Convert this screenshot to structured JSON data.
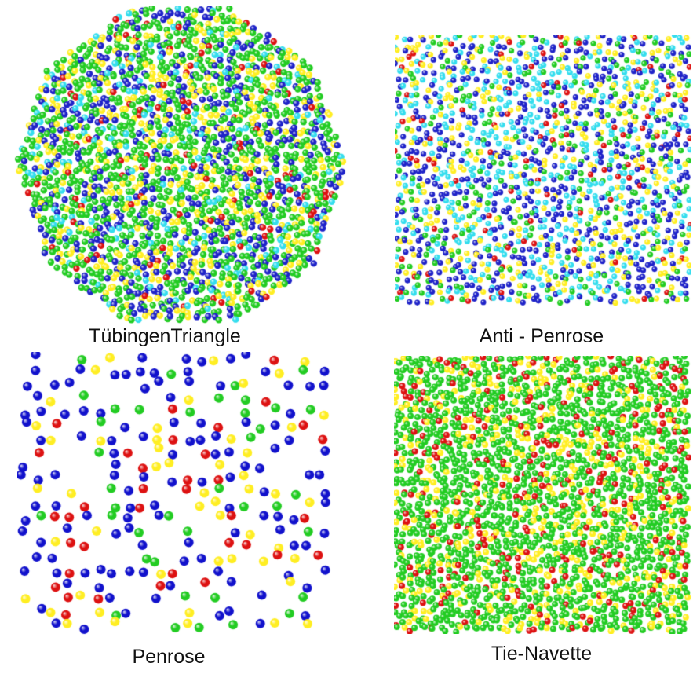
{
  "panels": [
    {
      "id": "tubingen",
      "caption": "TübingenTriangle",
      "pattern": "decagon",
      "colors": [
        "#1e22c8",
        "#22cc22",
        "#ffee22",
        "#dd1111",
        "#33ddee"
      ]
    },
    {
      "id": "anti-penrose",
      "caption": "Anti - Penrose",
      "pattern": "square",
      "colors": [
        "#1e22c8",
        "#22cc22",
        "#ffee22",
        "#dd1111",
        "#33ddee"
      ]
    },
    {
      "id": "penrose",
      "caption": "Penrose",
      "pattern": "square-sparse",
      "colors": [
        "#1111cc",
        "#22cc22",
        "#ffee22",
        "#dd1111"
      ]
    },
    {
      "id": "tie-navette",
      "caption": "Tie-Navette",
      "pattern": "square-dense",
      "colors": [
        "#22cc22",
        "#ffee22",
        "#dd1111"
      ]
    }
  ]
}
